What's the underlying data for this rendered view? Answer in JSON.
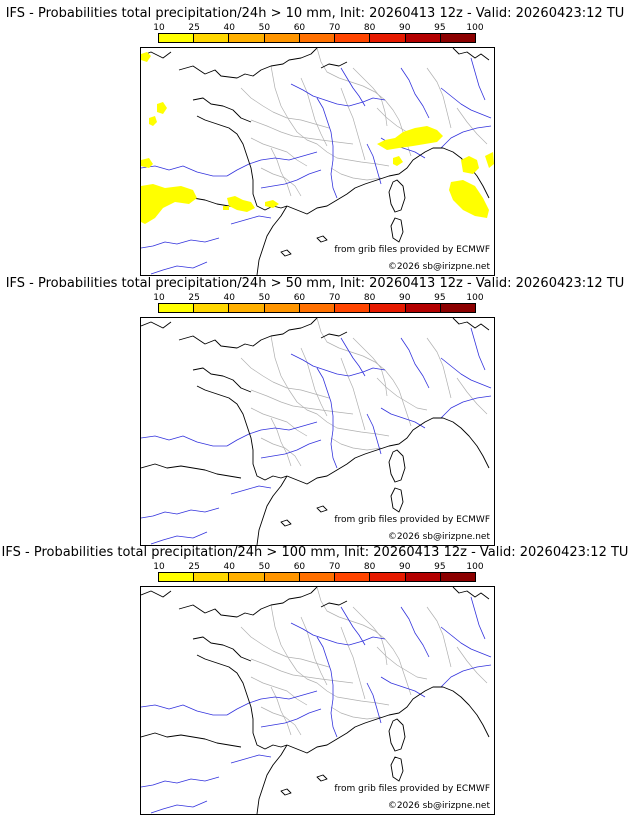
{
  "colorbar": {
    "ticks": [
      "10",
      "25",
      "40",
      "50",
      "60",
      "70",
      "80",
      "90",
      "95",
      "100"
    ],
    "colors": [
      "#ffff00",
      "#ffd700",
      "#ffb000",
      "#ff9500",
      "#ff7000",
      "#ff4500",
      "#e61a00",
      "#b30000",
      "#8b0000"
    ]
  },
  "panels": [
    {
      "title": "IFS - Probabilities total precipitation/24h > 10 mm, Init: 20260413 12z - Valid: 20260423:12 TU",
      "threshold_mm": 10,
      "yellow_areas": true
    },
    {
      "title": "IFS - Probabilities total precipitation/24h > 50 mm, Init: 20260413 12z - Valid: 20260423:12 TU",
      "threshold_mm": 50,
      "yellow_areas": false
    },
    {
      "title": "IFS - Probabilities total precipitation/24h > 100 mm, Init: 20260413 12z - Valid: 20260423:12 TU",
      "threshold_mm": 100,
      "yellow_areas": false
    }
  ],
  "credits": {
    "source": "from grib files provided by ECMWF",
    "copyright": "©2026 sb@irizpne.net"
  },
  "map_colors": {
    "coast": "#000000",
    "rivers": "#3333dd",
    "borders": "#b0b0b0",
    "precip_low": "#ffff00"
  }
}
